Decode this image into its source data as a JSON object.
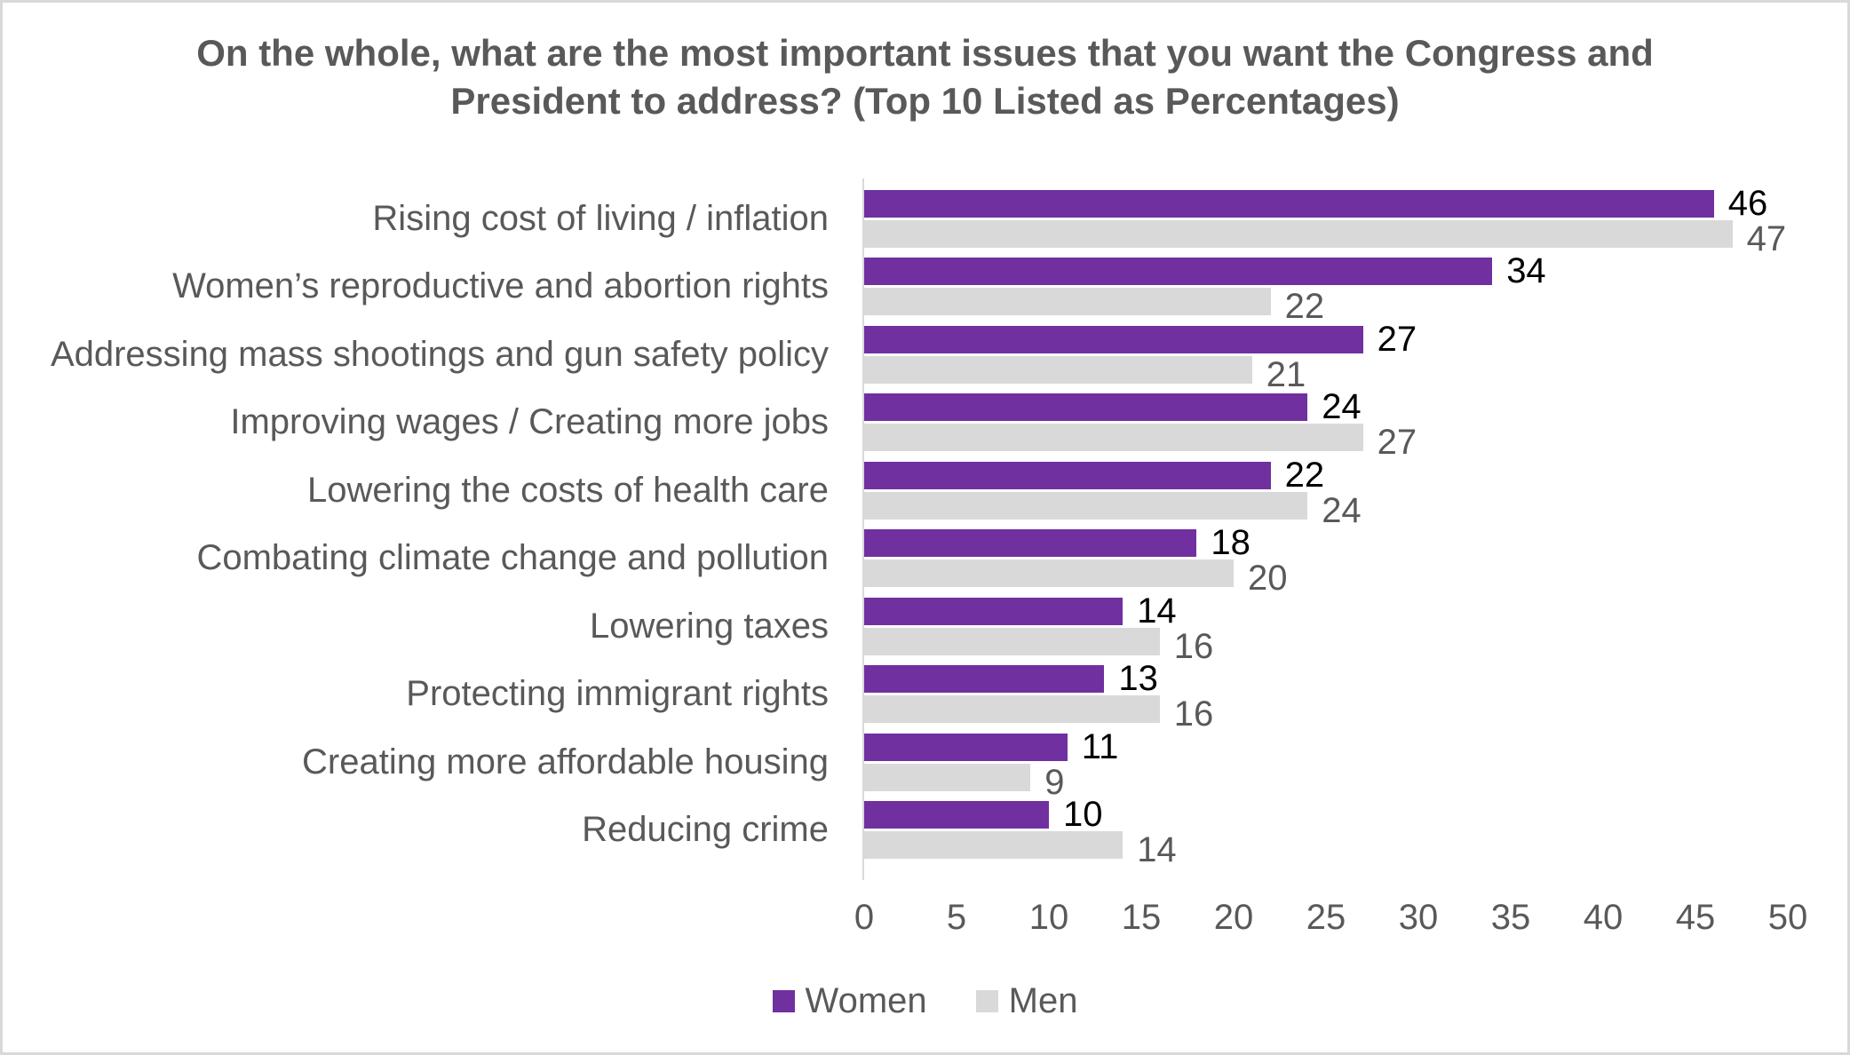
{
  "chart_data": {
    "type": "bar",
    "orientation": "horizontal",
    "title": "On the whole, what are the most important issues that you want the Congress and President to address? (Top 10 Listed as Percentages)",
    "categories": [
      "Rising cost of living / inflation",
      "Women’s reproductive and abortion rights",
      "Addressing mass shootings and gun safety policy",
      "Improving wages / Creating more jobs",
      "Lowering the costs of health care",
      "Combating climate change and pollution",
      "Lowering taxes",
      "Protecting immigrant rights",
      "Creating more affordable housing",
      "Reducing crime"
    ],
    "series": [
      {
        "name": "Women",
        "color": "#7030A0",
        "label_color": "#000000",
        "values": [
          46,
          34,
          27,
          24,
          22,
          18,
          14,
          13,
          11,
          10
        ]
      },
      {
        "name": "Men",
        "color": "#D9D9D9",
        "label_color": "#595959",
        "values": [
          47,
          22,
          21,
          27,
          24,
          20,
          16,
          16,
          9,
          14
        ]
      }
    ],
    "xlim": [
      0,
      50
    ],
    "x_ticks": [
      0,
      5,
      10,
      15,
      20,
      25,
      30,
      35,
      40,
      45,
      50
    ],
    "grid": false,
    "data_labels": true,
    "legend_position": "bottom"
  },
  "styles": {
    "text_color": "#595959",
    "axis_line_color": "#D9D9D9",
    "border_color": "#D9D9D9",
    "background": "#FFFFFF"
  }
}
